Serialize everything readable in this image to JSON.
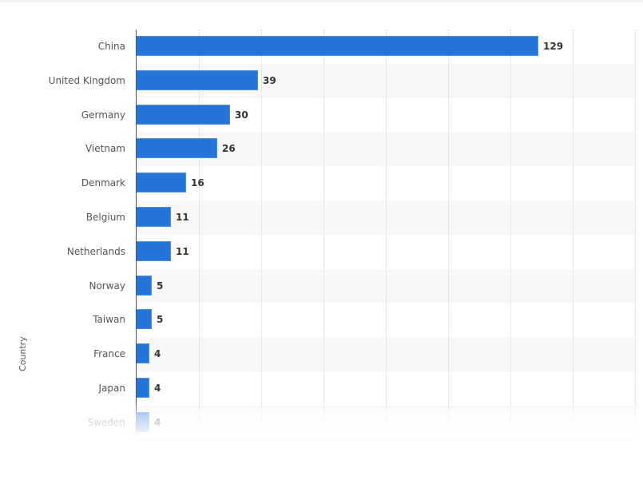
{
  "chart_data": {
    "type": "bar",
    "orientation": "horizontal",
    "title": "",
    "xlabel": "",
    "ylabel": "Country",
    "categories": [
      "China",
      "United Kingdom",
      "Germany",
      "Vietnam",
      "Denmark",
      "Belgium",
      "Netherlands",
      "Norway",
      "Taiwan",
      "France",
      "Japan",
      "Sweden"
    ],
    "values": [
      129,
      39,
      30,
      26,
      16,
      11,
      11,
      5,
      5,
      4,
      4,
      4
    ],
    "xlim": [
      0,
      160
    ],
    "grid": true,
    "grid_step": 20,
    "legend": "none",
    "bar_color": "#2574d9",
    "data_labels": true
  },
  "axis": {
    "y_title": "Country"
  },
  "rows": [
    {
      "label": "China",
      "value": "129"
    },
    {
      "label": "United Kingdom",
      "value": "39"
    },
    {
      "label": "Germany",
      "value": "30"
    },
    {
      "label": "Vietnam",
      "value": "26"
    },
    {
      "label": "Denmark",
      "value": "16"
    },
    {
      "label": "Belgium",
      "value": "11"
    },
    {
      "label": "Netherlands",
      "value": "11"
    },
    {
      "label": "Norway",
      "value": "5"
    },
    {
      "label": "Taiwan",
      "value": "5"
    },
    {
      "label": "France",
      "value": "4"
    },
    {
      "label": "Japan",
      "value": "4"
    },
    {
      "label": "Sweden",
      "value": "4"
    }
  ]
}
